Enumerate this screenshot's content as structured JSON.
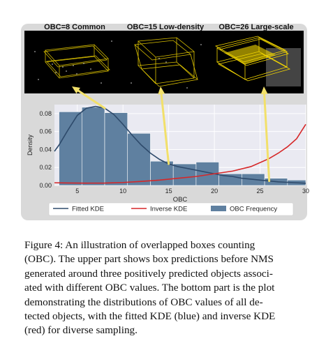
{
  "thumbnails": [
    {
      "label": "OBC=8 Common"
    },
    {
      "label": "OBC=15 Low-density"
    },
    {
      "label": "OBC=26 Large-scale"
    }
  ],
  "chart_data": {
    "type": "bar",
    "xlabel": "OBC",
    "ylabel": "Density",
    "xlim": [
      2.5,
      30
    ],
    "ylim": [
      0,
      0.09
    ],
    "x_ticks": [
      5,
      10,
      15,
      20,
      25,
      30
    ],
    "y_ticks": [
      "0.00",
      "0.02",
      "0.04",
      "0.06",
      "0.08"
    ],
    "grid": true,
    "legend_position": "bottom",
    "bins": {
      "edges": [
        3,
        5.5,
        8,
        10.5,
        13,
        15.5,
        18,
        20.5,
        23,
        25.5,
        28,
        30
      ],
      "values": [
        0.082,
        0.087,
        0.081,
        0.058,
        0.027,
        0.024,
        0.026,
        0.013,
        0.013,
        0.008,
        0.006
      ]
    },
    "series": [
      {
        "name": "Fitted KDE",
        "color": "#2e4a6b",
        "x": [
          2.5,
          3,
          4,
          5,
          6,
          7,
          8,
          9,
          10,
          11,
          12,
          13,
          14,
          15,
          16,
          17,
          18,
          19,
          20,
          21,
          22,
          23,
          24,
          25,
          26,
          27,
          28,
          29,
          30
        ],
        "y": [
          0.038,
          0.045,
          0.062,
          0.078,
          0.086,
          0.088,
          0.086,
          0.079,
          0.068,
          0.056,
          0.045,
          0.036,
          0.029,
          0.024,
          0.021,
          0.019,
          0.017,
          0.015,
          0.013,
          0.011,
          0.01,
          0.008,
          0.007,
          0.006,
          0.005,
          0.004,
          0.0035,
          0.003,
          0.0025
        ]
      },
      {
        "name": "Inverse KDE",
        "color": "#d62728",
        "x": [
          2.5,
          4,
          6,
          8,
          10,
          12,
          14,
          16,
          18,
          20,
          22,
          24,
          26,
          27,
          28,
          29,
          30
        ],
        "y": [
          0.003,
          0.0028,
          0.0026,
          0.0027,
          0.0033,
          0.0045,
          0.006,
          0.008,
          0.01,
          0.013,
          0.016,
          0.021,
          0.03,
          0.036,
          0.043,
          0.052,
          0.068
        ]
      }
    ],
    "legend": [
      "Fitted KDE",
      "Inverse KDE",
      "OBC Frequency"
    ],
    "bar_color": "#5f80a0",
    "annotations": [
      {
        "label": "OBC=8",
        "x": 8
      },
      {
        "label": "OBC=15",
        "x": 15
      },
      {
        "label": "OBC=26",
        "x": 26
      }
    ]
  },
  "caption": {
    "lines": [
      "Figure 4:  An illustration of overlapped boxes counting",
      "(OBC). The upper part shows box predictions before NMS",
      "generated around three positively predicted objects associ-",
      "ated with different OBC values. The bottom part is the plot",
      "demonstrating the distributions of OBC values of all de-",
      "tected objects, with the fitted KDE (blue) and inverse KDE",
      "(red) for diverse sampling."
    ]
  }
}
